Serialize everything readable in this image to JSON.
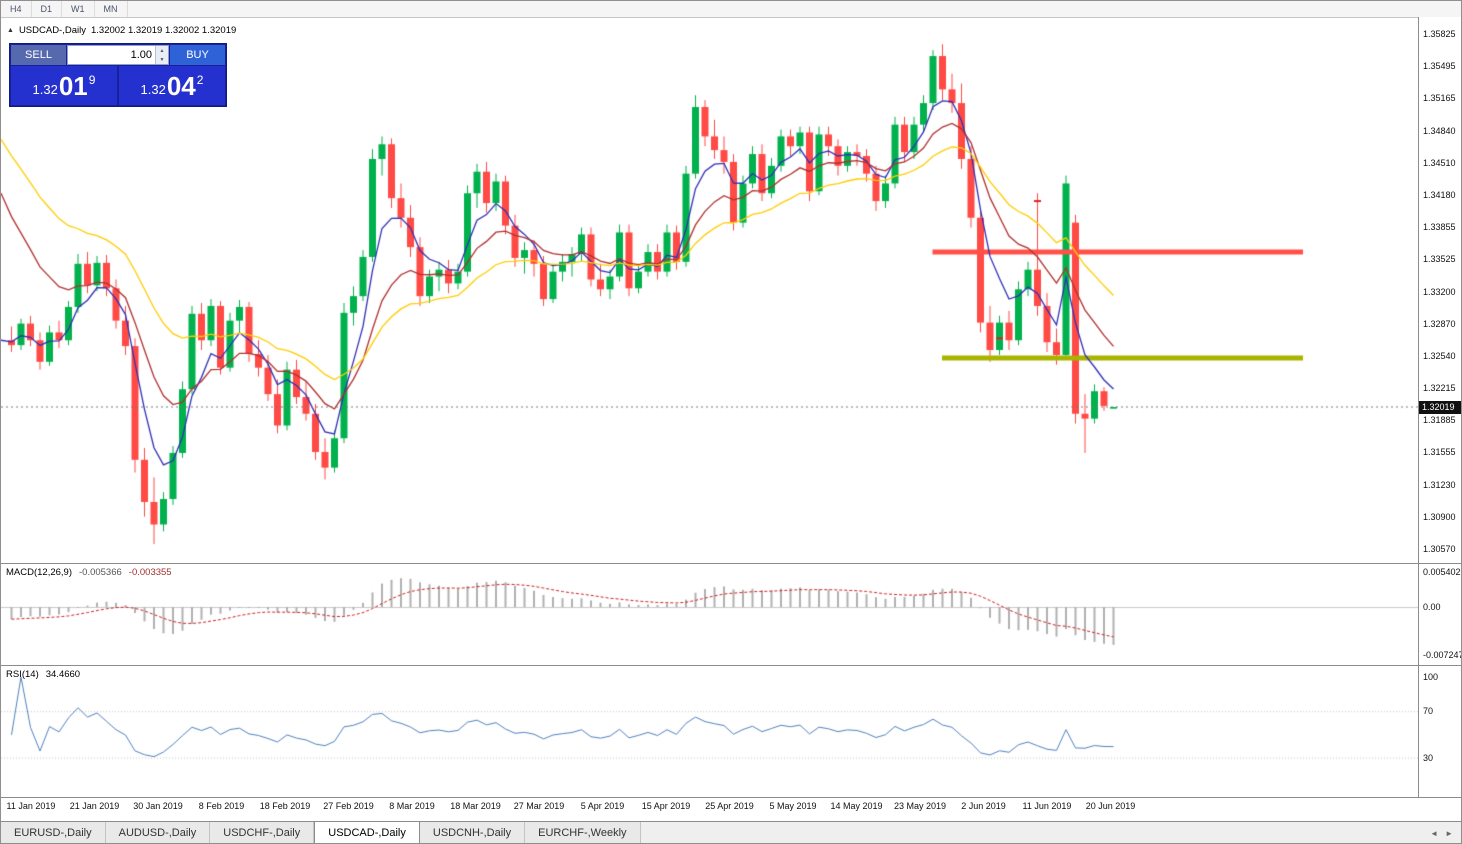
{
  "toolbar": {
    "timeframes": [
      "H4",
      "D1",
      "W1",
      "MN"
    ]
  },
  "chart_header": {
    "collapse_icon": "▲",
    "symbol": "USDCAD-,Daily",
    "ohlc": "1.32002 1.32019 1.32002 1.32019"
  },
  "trade_panel": {
    "sell_label": "SELL",
    "buy_label": "BUY",
    "volume": "1.00",
    "spinner_up": "▲",
    "spinner_down": "▼",
    "sell_price": {
      "prefix": "1.32",
      "digits": "01",
      "sup": "9"
    },
    "buy_price": {
      "prefix": "1.32",
      "digits": "04",
      "sup": "2"
    }
  },
  "price_axis": {
    "labels": [
      "1.35825",
      "1.35495",
      "1.35165",
      "1.34840",
      "1.34510",
      "1.34180",
      "1.33855",
      "1.33525",
      "1.33200",
      "1.32870",
      "1.32540",
      "1.32215",
      "1.31885",
      "1.31555",
      "1.31230",
      "1.30900",
      "1.30570"
    ],
    "current": "1.32019"
  },
  "macd_panel": {
    "label": "MACD(12,26,9)",
    "value_main": "-0.005366",
    "value_signal": "-0.003355",
    "axis": [
      "0.005402",
      "0.00",
      "-0.007247"
    ]
  },
  "rsi_panel": {
    "label": "RSI(14)",
    "value": "34.4660",
    "axis": [
      "100",
      "70",
      "30"
    ]
  },
  "time_axis": {
    "labels": [
      "11 Jan 2019",
      "21 Jan 2019",
      "30 Jan 2019",
      "8 Feb 2019",
      "18 Feb 2019",
      "27 Feb 2019",
      "8 Mar 2019",
      "18 Mar 2019",
      "27 Mar 2019",
      "5 Apr 2019",
      "15 Apr 2019",
      "25 Apr 2019",
      "5 May 2019",
      "14 May 2019",
      "23 May 2019",
      "2 Jun 2019",
      "11 Jun 2019",
      "20 Jun 2019"
    ]
  },
  "tabs": {
    "items": [
      {
        "label": "EURUSD-,Daily",
        "active": false
      },
      {
        "label": "AUDUSD-,Daily",
        "active": false
      },
      {
        "label": "USDCHF-,Daily",
        "active": false
      },
      {
        "label": "USDCAD-,Daily",
        "active": true
      },
      {
        "label": "USDCNH-,Daily",
        "active": false
      },
      {
        "label": "EURCHF-,Weekly",
        "active": false
      }
    ],
    "scroll_left": "◄",
    "scroll_right": "►"
  },
  "colors": {
    "up": "#00b14d",
    "down": "#ff4a45",
    "macd_hist": "#b0b0b0",
    "macd_signal": "#cc2020",
    "rsi_line": "#4f81bd",
    "current_line": "#777777",
    "tag_bg": "#111111"
  },
  "chart_data": {
    "type": "candlestick",
    "symbol": "USDCAD",
    "timeframe": "Daily",
    "price_axis_range": {
      "top_label": 1.35825,
      "bottom_label": 1.3057
    },
    "current_price": 1.32019,
    "levels": [
      {
        "type": "resistance",
        "price": 1.336,
        "color": "#ff5149",
        "from_index": 97,
        "to_index": 136
      },
      {
        "type": "support",
        "price": 1.3252,
        "color": "#a9b400",
        "from_index": 98,
        "to_index": 136
      }
    ],
    "markers": [
      {
        "index": 104,
        "price": 1.3272,
        "color": "#dd2222"
      },
      {
        "index": 108,
        "price": 1.3412,
        "color": "#dd2222"
      }
    ],
    "moving_averages": [
      {
        "name": "fast-ma",
        "period": 5,
        "start": 1.327,
        "color": "#3030b8"
      },
      {
        "name": "mid-ma",
        "period": 12,
        "start": 1.342,
        "color": "#b03030"
      },
      {
        "name": "slow-ma",
        "period": 24,
        "start": 1.3475,
        "color": "#ffcc00"
      }
    ],
    "macd": {
      "fast": 12,
      "slow": 26,
      "signal_period": 9,
      "slow_seed": 1.3285,
      "axis_max": 0.005402,
      "axis_min": -0.007247
    },
    "rsi": {
      "period": 14,
      "levels": [
        70,
        30
      ]
    },
    "candles": [
      [
        1.327,
        1.3284,
        1.3258,
        1.3265
      ],
      [
        1.3265,
        1.3292,
        1.326,
        1.3287
      ],
      [
        1.3287,
        1.3295,
        1.3264,
        1.327
      ],
      [
        1.327,
        1.3278,
        1.324,
        1.3248
      ],
      [
        1.3248,
        1.3285,
        1.3244,
        1.3278
      ],
      [
        1.3278,
        1.329,
        1.3262,
        1.327
      ],
      [
        1.327,
        1.331,
        1.3265,
        1.3304
      ],
      [
        1.3304,
        1.3358,
        1.3298,
        1.3348
      ],
      [
        1.3348,
        1.336,
        1.3318,
        1.3326
      ],
      [
        1.3326,
        1.3356,
        1.332,
        1.3349
      ],
      [
        1.3349,
        1.3357,
        1.3315,
        1.3323
      ],
      [
        1.3323,
        1.3332,
        1.3282,
        1.329
      ],
      [
        1.329,
        1.3305,
        1.3255,
        1.3264
      ],
      [
        1.3264,
        1.3272,
        1.3135,
        1.3148
      ],
      [
        1.3148,
        1.316,
        1.309,
        1.3105
      ],
      [
        1.3105,
        1.313,
        1.3062,
        1.3082
      ],
      [
        1.3082,
        1.3115,
        1.3075,
        1.3108
      ],
      [
        1.3108,
        1.3162,
        1.3102,
        1.3155
      ],
      [
        1.3155,
        1.3228,
        1.315,
        1.322
      ],
      [
        1.322,
        1.3305,
        1.3215,
        1.3297
      ],
      [
        1.3297,
        1.3308,
        1.326,
        1.327
      ],
      [
        1.327,
        1.3312,
        1.3264,
        1.3305
      ],
      [
        1.3305,
        1.331,
        1.3235,
        1.3242
      ],
      [
        1.3242,
        1.3298,
        1.3238,
        1.329
      ],
      [
        1.329,
        1.3311,
        1.3278,
        1.3304
      ],
      [
        1.3304,
        1.3309,
        1.3248,
        1.3256
      ],
      [
        1.3256,
        1.327,
        1.3233,
        1.3242
      ],
      [
        1.3242,
        1.3255,
        1.3208,
        1.3215
      ],
      [
        1.3215,
        1.323,
        1.3175,
        1.3183
      ],
      [
        1.3183,
        1.3248,
        1.3178,
        1.324
      ],
      [
        1.324,
        1.325,
        1.3205,
        1.3212
      ],
      [
        1.3212,
        1.3228,
        1.3188,
        1.3195
      ],
      [
        1.3195,
        1.3205,
        1.3148,
        1.3156
      ],
      [
        1.3156,
        1.317,
        1.3128,
        1.314
      ],
      [
        1.314,
        1.3178,
        1.3135,
        1.317
      ],
      [
        1.317,
        1.3308,
        1.3165,
        1.3298
      ],
      [
        1.3298,
        1.3325,
        1.3285,
        1.3315
      ],
      [
        1.3315,
        1.3362,
        1.331,
        1.3355
      ],
      [
        1.3355,
        1.3465,
        1.335,
        1.3455
      ],
      [
        1.3455,
        1.3478,
        1.3438,
        1.347
      ],
      [
        1.347,
        1.3476,
        1.3405,
        1.3415
      ],
      [
        1.3415,
        1.343,
        1.3385,
        1.3395
      ],
      [
        1.3395,
        1.3408,
        1.3355,
        1.3365
      ],
      [
        1.3365,
        1.3375,
        1.3305,
        1.3315
      ],
      [
        1.3315,
        1.3342,
        1.3308,
        1.3335
      ],
      [
        1.3335,
        1.335,
        1.332,
        1.3342
      ],
      [
        1.3342,
        1.3352,
        1.3318,
        1.3328
      ],
      [
        1.3328,
        1.3348,
        1.3322,
        1.334
      ],
      [
        1.334,
        1.3428,
        1.3335,
        1.342
      ],
      [
        1.342,
        1.345,
        1.3405,
        1.3442
      ],
      [
        1.3442,
        1.3452,
        1.34,
        1.341
      ],
      [
        1.341,
        1.344,
        1.3402,
        1.3432
      ],
      [
        1.3432,
        1.3438,
        1.3378,
        1.3387
      ],
      [
        1.3387,
        1.3398,
        1.3345,
        1.3354
      ],
      [
        1.3354,
        1.337,
        1.3338,
        1.3362
      ],
      [
        1.3362,
        1.3372,
        1.3335,
        1.3348
      ],
      [
        1.3348,
        1.3356,
        1.3305,
        1.3312
      ],
      [
        1.3312,
        1.3348,
        1.3308,
        1.334
      ],
      [
        1.334,
        1.3358,
        1.333,
        1.335
      ],
      [
        1.335,
        1.3365,
        1.3335,
        1.3358
      ],
      [
        1.3358,
        1.3385,
        1.335,
        1.3378
      ],
      [
        1.3378,
        1.3385,
        1.3325,
        1.3332
      ],
      [
        1.3332,
        1.3348,
        1.3315,
        1.3322
      ],
      [
        1.3322,
        1.3342,
        1.3312,
        1.3335
      ],
      [
        1.3335,
        1.3388,
        1.333,
        1.338
      ],
      [
        1.338,
        1.3388,
        1.3315,
        1.3323
      ],
      [
        1.3323,
        1.3348,
        1.3318,
        1.334
      ],
      [
        1.334,
        1.3368,
        1.3335,
        1.336
      ],
      [
        1.336,
        1.3368,
        1.3332,
        1.334
      ],
      [
        1.334,
        1.3388,
        1.3335,
        1.338
      ],
      [
        1.338,
        1.3387,
        1.3342,
        1.335
      ],
      [
        1.335,
        1.3448,
        1.3345,
        1.344
      ],
      [
        1.344,
        1.352,
        1.3435,
        1.3508
      ],
      [
        1.3508,
        1.3515,
        1.3468,
        1.3478
      ],
      [
        1.3478,
        1.3495,
        1.3455,
        1.3464
      ],
      [
        1.3464,
        1.3478,
        1.344,
        1.3452
      ],
      [
        1.3452,
        1.346,
        1.3382,
        1.339
      ],
      [
        1.339,
        1.3438,
        1.3385,
        1.343
      ],
      [
        1.343,
        1.3468,
        1.3425,
        1.346
      ],
      [
        1.346,
        1.347,
        1.3412,
        1.342
      ],
      [
        1.342,
        1.3456,
        1.3415,
        1.3448
      ],
      [
        1.3448,
        1.3485,
        1.3442,
        1.3478
      ],
      [
        1.3478,
        1.3485,
        1.3458,
        1.3468
      ],
      [
        1.3468,
        1.3488,
        1.346,
        1.3482
      ],
      [
        1.3482,
        1.3488,
        1.3412,
        1.3422
      ],
      [
        1.3422,
        1.3488,
        1.3418,
        1.348
      ],
      [
        1.348,
        1.3488,
        1.3458,
        1.3468
      ],
      [
        1.3468,
        1.3475,
        1.3438,
        1.3448
      ],
      [
        1.3448,
        1.3468,
        1.3442,
        1.3462
      ],
      [
        1.3462,
        1.347,
        1.3448,
        1.3458
      ],
      [
        1.3458,
        1.3465,
        1.3432,
        1.344
      ],
      [
        1.344,
        1.3448,
        1.3402,
        1.3412
      ],
      [
        1.3412,
        1.3438,
        1.3405,
        1.343
      ],
      [
        1.343,
        1.3498,
        1.3425,
        1.349
      ],
      [
        1.349,
        1.3498,
        1.3452,
        1.3462
      ],
      [
        1.3462,
        1.3498,
        1.3455,
        1.349
      ],
      [
        1.349,
        1.352,
        1.3482,
        1.3512
      ],
      [
        1.3512,
        1.3566,
        1.3505,
        1.356
      ],
      [
        1.356,
        1.3572,
        1.3515,
        1.3526
      ],
      [
        1.3526,
        1.3542,
        1.3502,
        1.3512
      ],
      [
        1.3512,
        1.3532,
        1.3445,
        1.3455
      ],
      [
        1.3455,
        1.3468,
        1.3385,
        1.3395
      ],
      [
        1.3395,
        1.3405,
        1.3278,
        1.3288
      ],
      [
        1.3288,
        1.3305,
        1.3248,
        1.326
      ],
      [
        1.326,
        1.3295,
        1.3255,
        1.3288
      ],
      [
        1.3288,
        1.33,
        1.326,
        1.327
      ],
      [
        1.327,
        1.333,
        1.3265,
        1.3322
      ],
      [
        1.3322,
        1.335,
        1.3315,
        1.3342
      ],
      [
        1.3342,
        1.342,
        1.3295,
        1.3305
      ],
      [
        1.3305,
        1.3318,
        1.3258,
        1.3268
      ],
      [
        1.3268,
        1.3282,
        1.3245,
        1.3255
      ],
      [
        1.3255,
        1.3438,
        1.325,
        1.343
      ],
      [
        1.339,
        1.3398,
        1.3185,
        1.3195
      ],
      [
        1.3195,
        1.3215,
        1.3155,
        1.319
      ],
      [
        1.319,
        1.3225,
        1.3185,
        1.3218
      ],
      [
        1.3218,
        1.3222,
        1.3198,
        1.3203
      ],
      [
        1.32002,
        1.32019,
        1.32002,
        1.32019
      ]
    ]
  }
}
